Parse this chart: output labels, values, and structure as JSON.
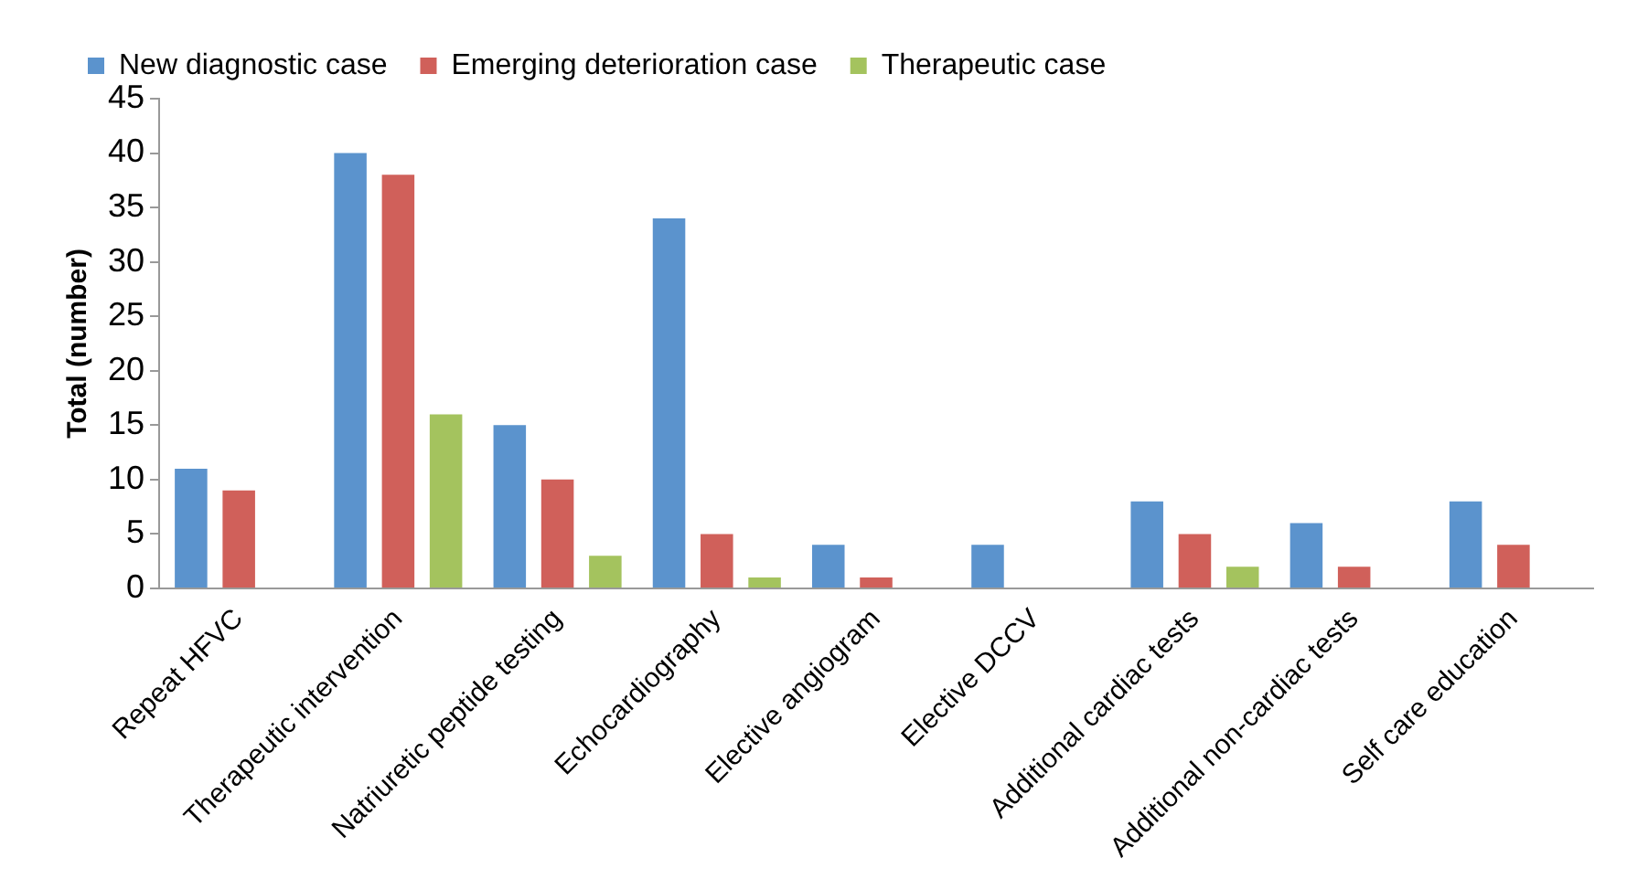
{
  "chart_data": {
    "type": "bar",
    "ylabel": "Total (number)",
    "categories": [
      "Repeat HFVC",
      "Therapeutic intervention",
      "Natriuretic peptide testing",
      "Echocardiography",
      "Elective angiogram",
      "Elective DCCV",
      "Additional cardiac tests",
      "Additional non-cardiac tests",
      "Self care education"
    ],
    "series": [
      {
        "name": "New diagnostic case",
        "color": "#5b93cd",
        "values": [
          11,
          40,
          15,
          34,
          4,
          4,
          8,
          6,
          8
        ]
      },
      {
        "name": "Emerging deterioration case",
        "color": "#d0605a",
        "values": [
          9,
          38,
          10,
          5,
          1,
          0,
          5,
          2,
          4
        ]
      },
      {
        "name": "Therapeutic case",
        "color": "#a4c35e",
        "values": [
          0,
          16,
          3,
          1,
          0,
          0,
          2,
          0,
          0
        ]
      }
    ],
    "ylim": [
      0,
      45
    ],
    "yticks": [
      0,
      5,
      10,
      15,
      20,
      25,
      30,
      35,
      40,
      45
    ],
    "grid": false,
    "legend": "top"
  }
}
